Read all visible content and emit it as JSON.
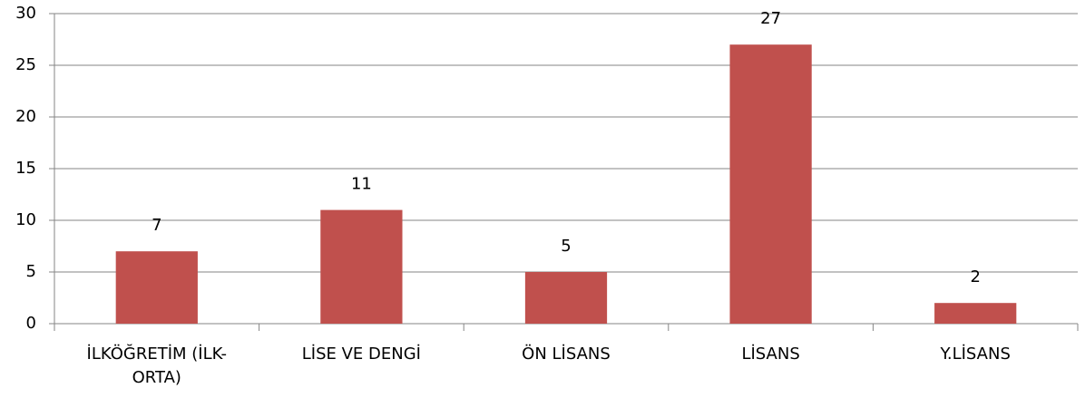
{
  "chart_data": {
    "type": "bar",
    "categories": [
      "İLKÖĞRETİM (İLK-ORTA)",
      "LİSE VE DENGİ",
      "ÖN LİSANS",
      "LİSANS",
      "Y.LİSANS"
    ],
    "values": [
      7,
      11,
      5,
      27,
      2
    ],
    "color": "#c0504d",
    "ylim": [
      0,
      30
    ],
    "yticks": [
      0,
      5,
      10,
      15,
      20,
      25,
      30
    ],
    "grid": true
  }
}
